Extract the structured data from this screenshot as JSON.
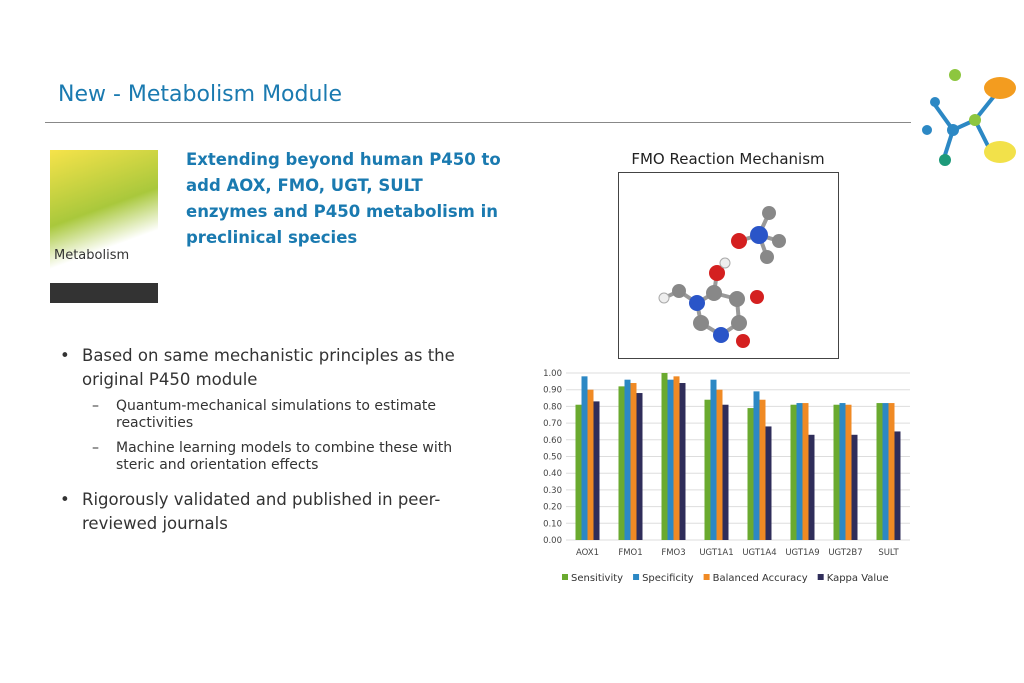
{
  "header": {
    "title": "New - Metabolism Module"
  },
  "cover": {
    "title": "Metabolism"
  },
  "highlight": "Extending beyond human P450 to add AOX, FMO, UGT, SULT enzymes and P450 metabolism in preclinical species",
  "bullets": [
    {
      "text": "Based on same mechanistic principles as the original P450 module",
      "sub": [
        "Quantum-mechanical simulations to estimate reactivities",
        "Machine learning models to combine these with steric and orientation effects"
      ]
    },
    {
      "text": "Rigorously validated and published in peer-reviewed journals",
      "sub": []
    }
  ],
  "figure": {
    "caption": "FMO Reaction Mechanism"
  },
  "chart_data": {
    "type": "bar",
    "categories": [
      "AOX1",
      "FMO1",
      "FMO3",
      "UGT1A1",
      "UGT1A4",
      "UGT1A9",
      "UGT2B7",
      "SULT"
    ],
    "series": [
      {
        "name": "Sensitivity",
        "color": "#6aaa2f",
        "values": [
          0.81,
          0.92,
          1.0,
          0.84,
          0.79,
          0.81,
          0.81,
          0.82
        ]
      },
      {
        "name": "Specificity",
        "color": "#2c88c4",
        "values": [
          0.98,
          0.96,
          0.96,
          0.96,
          0.89,
          0.82,
          0.82,
          0.82
        ]
      },
      {
        "name": "Balanced Accuracy",
        "color": "#f08a24",
        "values": [
          0.9,
          0.94,
          0.98,
          0.9,
          0.84,
          0.82,
          0.81,
          0.82
        ]
      },
      {
        "name": "Kappa Value",
        "color": "#2f2d5a",
        "values": [
          0.83,
          0.88,
          0.94,
          0.81,
          0.68,
          0.63,
          0.63,
          0.65
        ]
      }
    ],
    "ylim": [
      0,
      1.0
    ],
    "yticks": [
      {
        "value": 0,
        "label": "0.00"
      },
      {
        "value": 0.1,
        "label": "0.10"
      },
      {
        "value": 0.2,
        "label": "0.20"
      },
      {
        "value": 0.3,
        "label": "0.30"
      },
      {
        "value": 0.4,
        "label": "0.40"
      },
      {
        "value": 0.5,
        "label": "0.50"
      },
      {
        "value": 0.6,
        "label": "0.60"
      },
      {
        "value": 0.7,
        "label": "0.70"
      },
      {
        "value": 0.8,
        "label": "0.80"
      },
      {
        "value": 0.9,
        "label": "0.90"
      },
      {
        "value": 1.0,
        "label": "1.00"
      }
    ],
    "grid": true
  }
}
